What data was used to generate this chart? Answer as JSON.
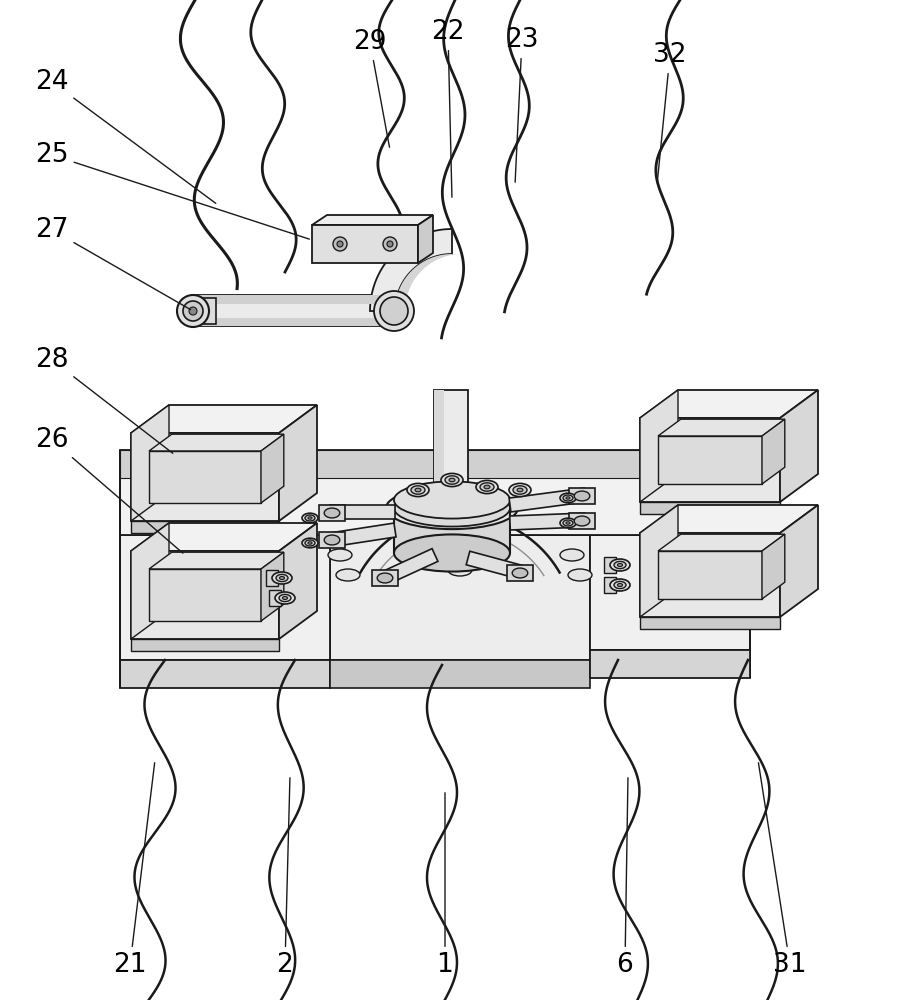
{
  "bg": "#ffffff",
  "lc": "#1a1a1a",
  "fc_light": "#f5f5f5",
  "fc_mid": "#e0e0e0",
  "fc_dark": "#c8c8c8",
  "fig_w": 9.2,
  "fig_h": 10.0,
  "dpi": 100
}
